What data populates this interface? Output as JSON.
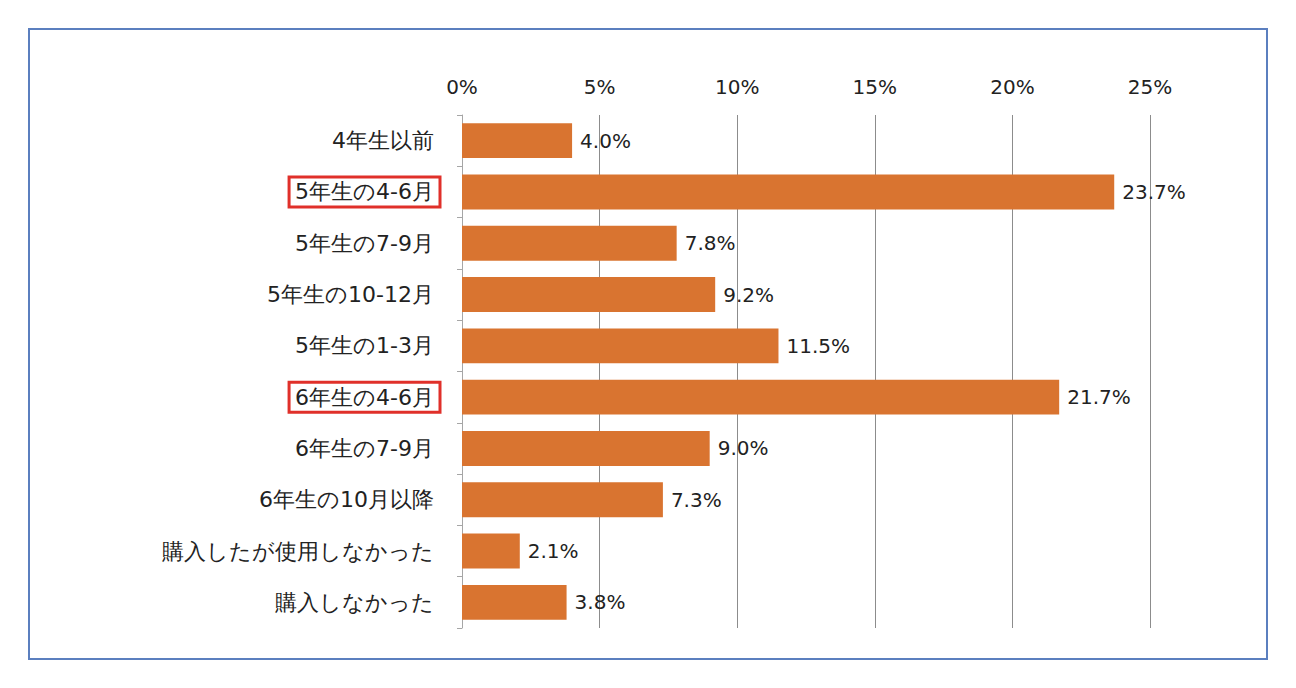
{
  "chart_data": {
    "type": "bar",
    "orientation": "horizontal",
    "categories": [
      "4年生以前",
      "5年生の4-6月",
      "5年生の7-9月",
      "5年生の10-12月",
      "5年生の1-3月",
      "6年生の4-6月",
      "6年生の7-9月",
      "6年生の10月以降",
      "購入したが使用しなかった",
      "購入しなかった"
    ],
    "values": [
      4.0,
      23.7,
      7.8,
      9.2,
      11.5,
      21.7,
      9.0,
      7.3,
      2.1,
      3.8
    ],
    "value_labels": [
      "4.0%",
      "23.7%",
      "7.8%",
      "9.2%",
      "11.5%",
      "21.7%",
      "9.0%",
      "7.3%",
      "2.1%",
      "3.8%"
    ],
    "color": "#d97430",
    "xlim": [
      0,
      25
    ],
    "xticks": [
      {
        "value": 0,
        "label": "0%"
      },
      {
        "value": 5,
        "label": "5%"
      },
      {
        "value": 10,
        "label": "10%"
      },
      {
        "value": 15,
        "label": "15%"
      },
      {
        "value": 20,
        "label": "20%"
      },
      {
        "value": 25,
        "label": "25%"
      }
    ],
    "grid": true,
    "data_labels": true
  }
}
